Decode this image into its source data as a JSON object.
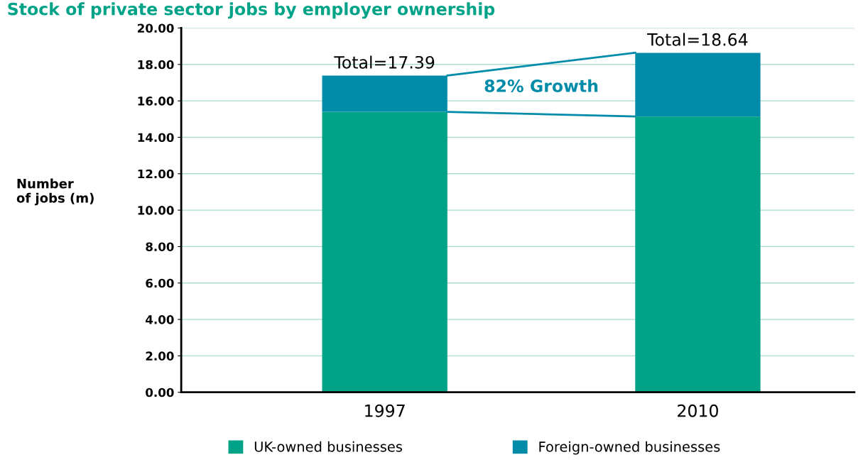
{
  "chart_data": {
    "type": "bar",
    "title": "Stock of private sector jobs by employer ownership",
    "ylabel": "Number\nof jobs (m)",
    "categories": [
      "1997",
      "2010"
    ],
    "stacked": true,
    "series": [
      {
        "name": "UK-owned businesses",
        "color": "#00a388",
        "values": [
          15.4,
          15.14
        ]
      },
      {
        "name": "Foreign-owned businesses",
        "color": "#008ca8",
        "values": [
          1.99,
          3.5
        ]
      }
    ],
    "totals": [
      "Total=17.39",
      "Total=18.64"
    ],
    "annotations": [
      "82% Growth"
    ],
    "ylim": [
      0,
      20
    ],
    "yticks": [
      {
        "value": 0,
        "label": "0.00"
      },
      {
        "value": 2,
        "label": "2.00"
      },
      {
        "value": 4,
        "label": "4.00"
      },
      {
        "value": 6,
        "label": "6.00"
      },
      {
        "value": 8,
        "label": "8.00"
      },
      {
        "value": 10,
        "label": "10.00"
      },
      {
        "value": 12,
        "label": "12.00"
      },
      {
        "value": 14,
        "label": "14.00"
      },
      {
        "value": 16,
        "label": "16.00"
      },
      {
        "value": 18,
        "label": "18.00"
      },
      {
        "value": 20,
        "label": "20.00"
      }
    ],
    "grid": "y",
    "legend": "bottom"
  }
}
